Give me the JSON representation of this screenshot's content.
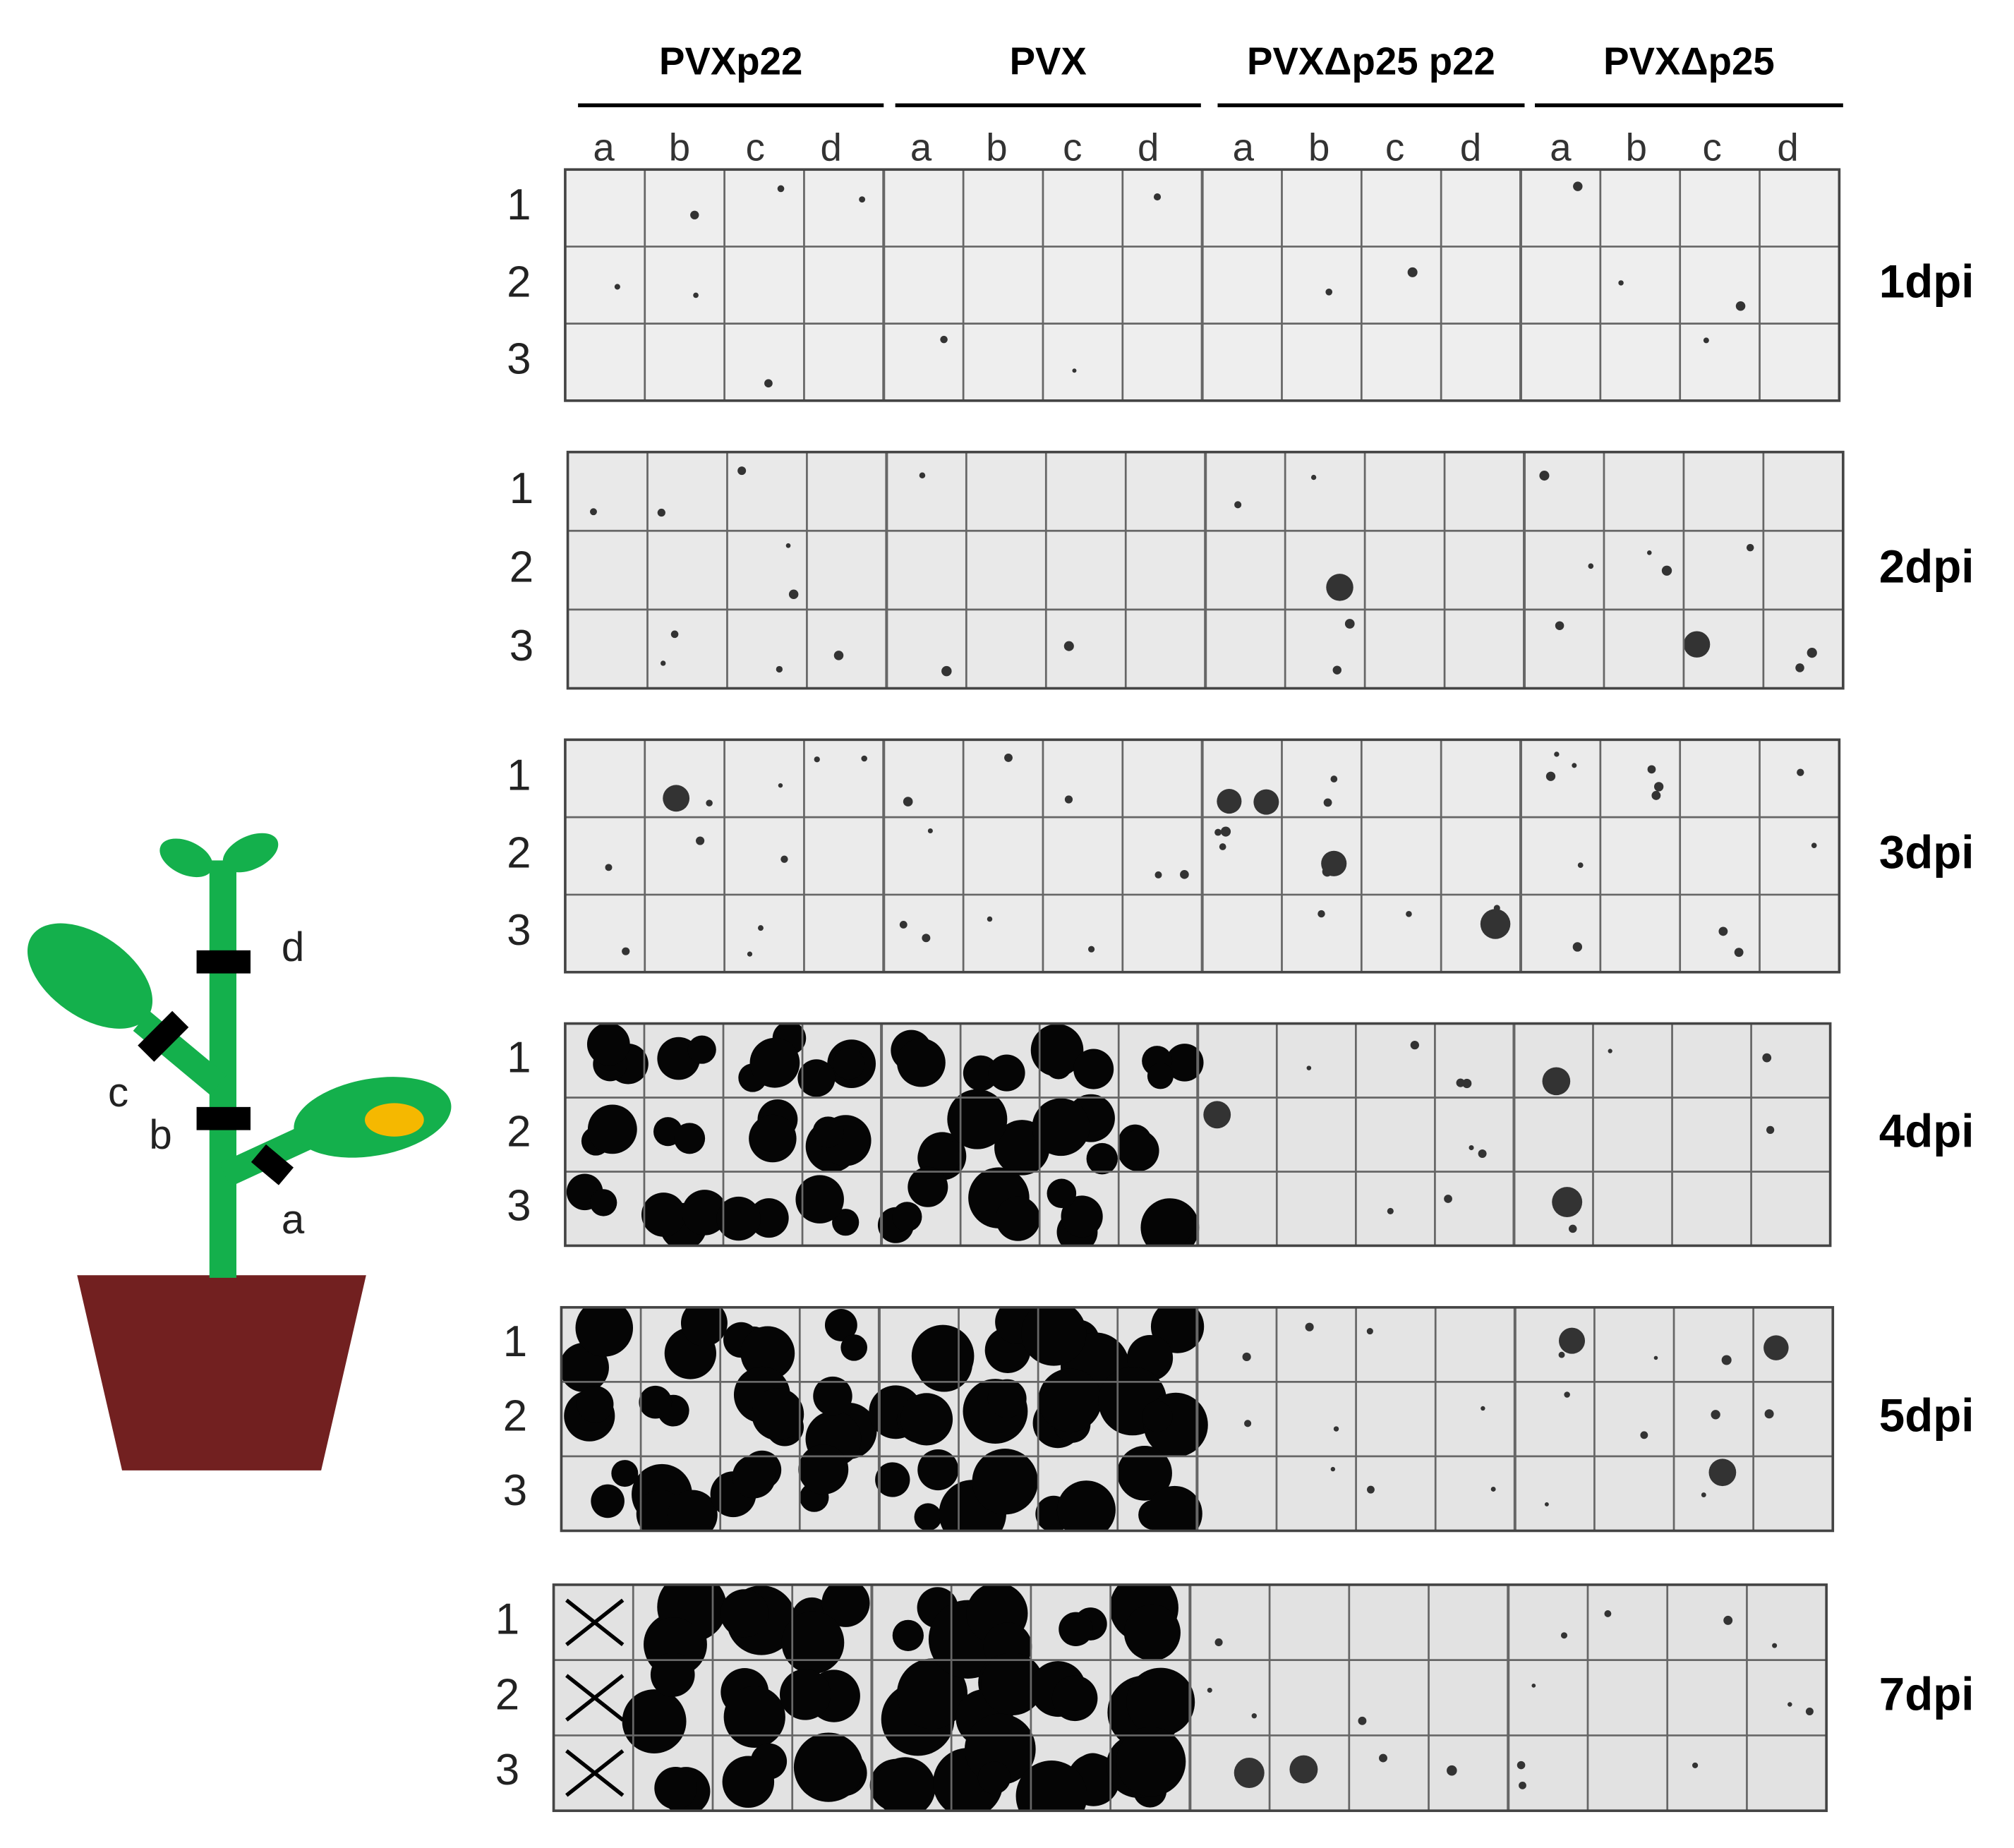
{
  "groups": [
    "PVXp22",
    "PVX",
    "PVXΔp25 p22",
    "PVXΔp25"
  ],
  "column_letters": [
    "a",
    "b",
    "c",
    "d"
  ],
  "row_numbers": [
    "1",
    "2",
    "3"
  ],
  "panels": [
    {
      "label": "1dpi"
    },
    {
      "label": "2dpi"
    },
    {
      "label": "3dpi"
    },
    {
      "label": "4dpi"
    },
    {
      "label": "5dpi"
    },
    {
      "label": "7dpi"
    }
  ],
  "plant": {
    "labels": [
      "d",
      "c",
      "b",
      "a"
    ]
  }
}
